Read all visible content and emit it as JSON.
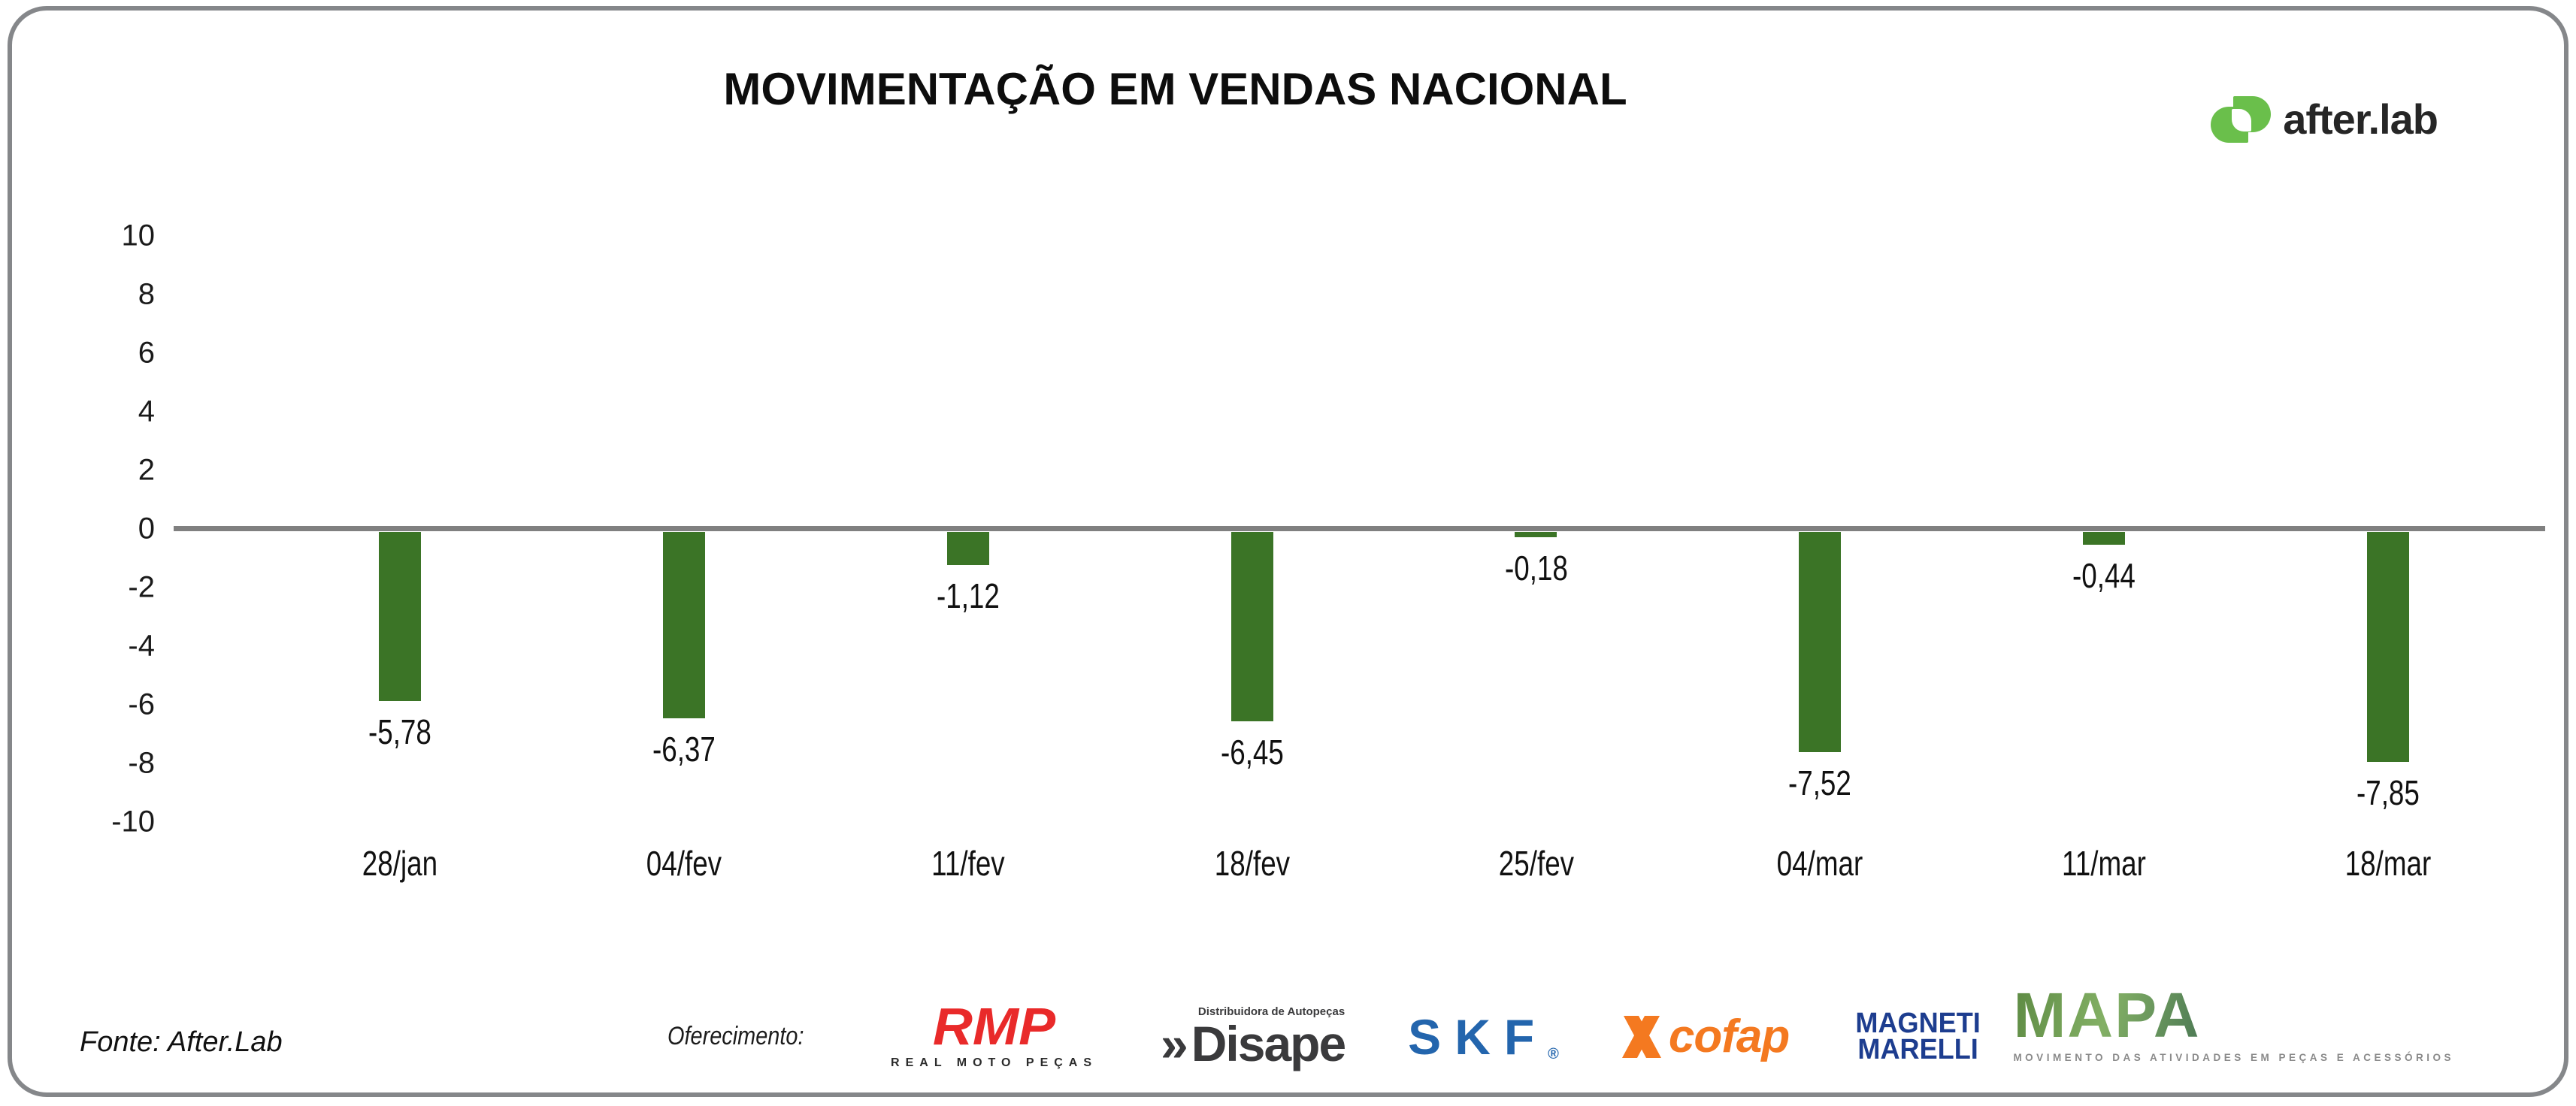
{
  "title": "MOVIMENTAÇÃO EM VENDAS NACIONAL",
  "brand": {
    "name": "after.lab",
    "icon_color": "#6abf4b"
  },
  "chart_data": {
    "type": "bar",
    "title": "MOVIMENTAÇÃO EM VENDAS NACIONAL",
    "categories": [
      "28/jan",
      "04/fev",
      "11/fev",
      "18/fev",
      "25/fev",
      "04/mar",
      "11/mar",
      "18/mar"
    ],
    "values": [
      -5.78,
      -6.37,
      -1.12,
      -6.45,
      -0.18,
      -7.52,
      -0.44,
      -7.85
    ],
    "value_labels": [
      "-5,78",
      "-6,37",
      "-1,12",
      "-6,45",
      "-0,18",
      "-7,52",
      "-0,44",
      "-7,85"
    ],
    "xlabel": "",
    "ylabel": "",
    "ylim": [
      -10,
      10
    ],
    "yticks": [
      10,
      8,
      6,
      4,
      2,
      0,
      -2,
      -4,
      -6,
      -8,
      -10
    ],
    "bar_color": "#3b7426",
    "zero_line_color": "#808080",
    "grid": false,
    "legend": false
  },
  "footer": {
    "source": "Fonte: After.Lab",
    "sponsors_label": "Oferecimento:",
    "sponsors": {
      "rmp": {
        "name": "RMP",
        "subtitle": "REAL MOTO PEÇAS",
        "color": "#e92a2a"
      },
      "disape": {
        "prefix": "»",
        "name": "Disape",
        "subtitle": "Distribuidora de Autopeças",
        "color": "#3a3a3c"
      },
      "skf": {
        "name": "SKF",
        "reg": "®",
        "color": "#2365ad"
      },
      "cofap": {
        "name": "cofap",
        "color": "#f47920"
      },
      "magneti": {
        "line1": "MAGNETI",
        "line2": "MARELLI",
        "color": "#1d3d8f"
      }
    },
    "mapa": {
      "name": "MAPA",
      "subtitle": "MOVIMENTO DAS ATIVIDADES EM PEÇAS E ACESSÓRIOS"
    }
  }
}
